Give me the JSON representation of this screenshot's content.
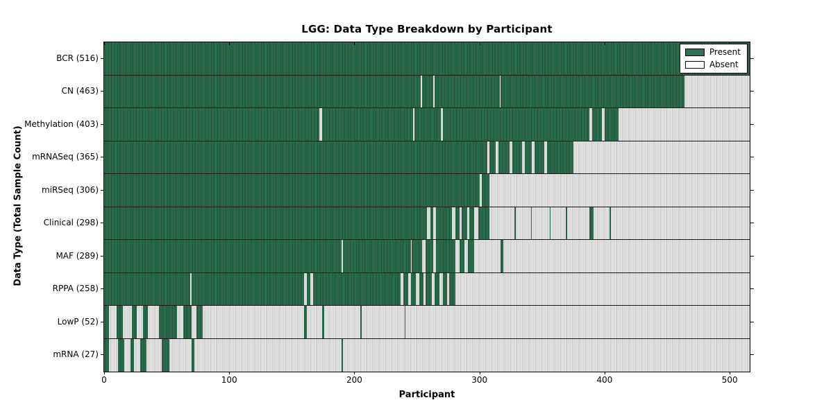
{
  "colors": {
    "present": "#2f7150",
    "present_line": "#1f5136",
    "absent": "#dcdcdc",
    "absent_line": "#c0c0c0",
    "axis": "#000000",
    "background": "#ffffff"
  },
  "chart_data": {
    "type": "heatmap",
    "title": "LGG: Data Type Breakdown by Participant",
    "xlabel": "Participant",
    "ylabel": "Data Type (Total Sample Count)",
    "x_range": [
      0,
      516
    ],
    "x_ticks": [
      0,
      100,
      200,
      300,
      400,
      500
    ],
    "grid": false,
    "legend_position": "upper right",
    "legend": [
      {
        "label": "Present",
        "color": "#2f7150"
      },
      {
        "label": "Absent",
        "color": "#ffffff"
      }
    ],
    "rows": [
      {
        "data_type": "BCR",
        "total": 516,
        "label": "BCR (516)",
        "present_intervals": [
          [
            0,
            516
          ]
        ]
      },
      {
        "data_type": "CN",
        "total": 463,
        "label": "CN (463)",
        "present_intervals": [
          [
            0,
            253
          ],
          [
            254,
            263
          ],
          [
            264,
            316
          ],
          [
            317,
            464
          ]
        ]
      },
      {
        "data_type": "Methylation",
        "total": 403,
        "label": "Methylation (403)",
        "present_intervals": [
          [
            0,
            172
          ],
          [
            174,
            247
          ],
          [
            248,
            269
          ],
          [
            271,
            388
          ],
          [
            390,
            398
          ],
          [
            400,
            411
          ]
        ]
      },
      {
        "data_type": "mRNASeq",
        "total": 365,
        "label": "mRNASeq (365)",
        "present_intervals": [
          [
            0,
            306
          ],
          [
            308,
            313
          ],
          [
            315,
            324
          ],
          [
            326,
            334
          ],
          [
            336,
            342
          ],
          [
            344,
            352
          ],
          [
            354,
            375
          ]
        ]
      },
      {
        "data_type": "miRSeq",
        "total": 306,
        "label": "miRSeq (306)",
        "present_intervals": [
          [
            0,
            300
          ],
          [
            302,
            308
          ]
        ]
      },
      {
        "data_type": "Clinical",
        "total": 298,
        "label": "Clinical (298)",
        "present_intervals": [
          [
            0,
            258
          ],
          [
            261,
            263
          ],
          [
            265,
            278
          ],
          [
            281,
            284
          ],
          [
            286,
            290
          ],
          [
            292,
            296
          ],
          [
            299,
            308
          ],
          [
            328,
            329
          ],
          [
            341,
            342
          ],
          [
            356,
            357
          ],
          [
            369,
            370
          ],
          [
            388,
            391
          ],
          [
            404,
            405
          ]
        ]
      },
      {
        "data_type": "MAF",
        "total": 289,
        "label": "MAF (289)",
        "present_intervals": [
          [
            0,
            190
          ],
          [
            191,
            245
          ],
          [
            246,
            254
          ],
          [
            257,
            263
          ],
          [
            265,
            281
          ],
          [
            284,
            288
          ],
          [
            291,
            296
          ],
          [
            317,
            319
          ]
        ]
      },
      {
        "data_type": "RPPA",
        "total": 258,
        "label": "RPPA (258)",
        "present_intervals": [
          [
            0,
            69
          ],
          [
            70,
            160
          ],
          [
            162,
            165
          ],
          [
            167,
            237
          ],
          [
            239,
            243
          ],
          [
            245,
            249
          ],
          [
            252,
            255
          ],
          [
            257,
            262
          ],
          [
            264,
            268
          ],
          [
            271,
            274
          ],
          [
            276,
            281
          ]
        ]
      },
      {
        "data_type": "LowP",
        "total": 52,
        "label": "LowP (52)",
        "present_intervals": [
          [
            0,
            4
          ],
          [
            10,
            15
          ],
          [
            22,
            26
          ],
          [
            31,
            35
          ],
          [
            44,
            58
          ],
          [
            63,
            70
          ],
          [
            74,
            79
          ],
          [
            160,
            162
          ],
          [
            174,
            176
          ],
          [
            205,
            206
          ],
          [
            240,
            241
          ]
        ]
      },
      {
        "data_type": "mRNA",
        "total": 27,
        "label": "mRNA (27)",
        "present_intervals": [
          [
            0,
            4
          ],
          [
            11,
            16
          ],
          [
            21,
            24
          ],
          [
            29,
            34
          ],
          [
            46,
            52
          ],
          [
            70,
            72
          ],
          [
            190,
            191
          ]
        ]
      }
    ]
  }
}
